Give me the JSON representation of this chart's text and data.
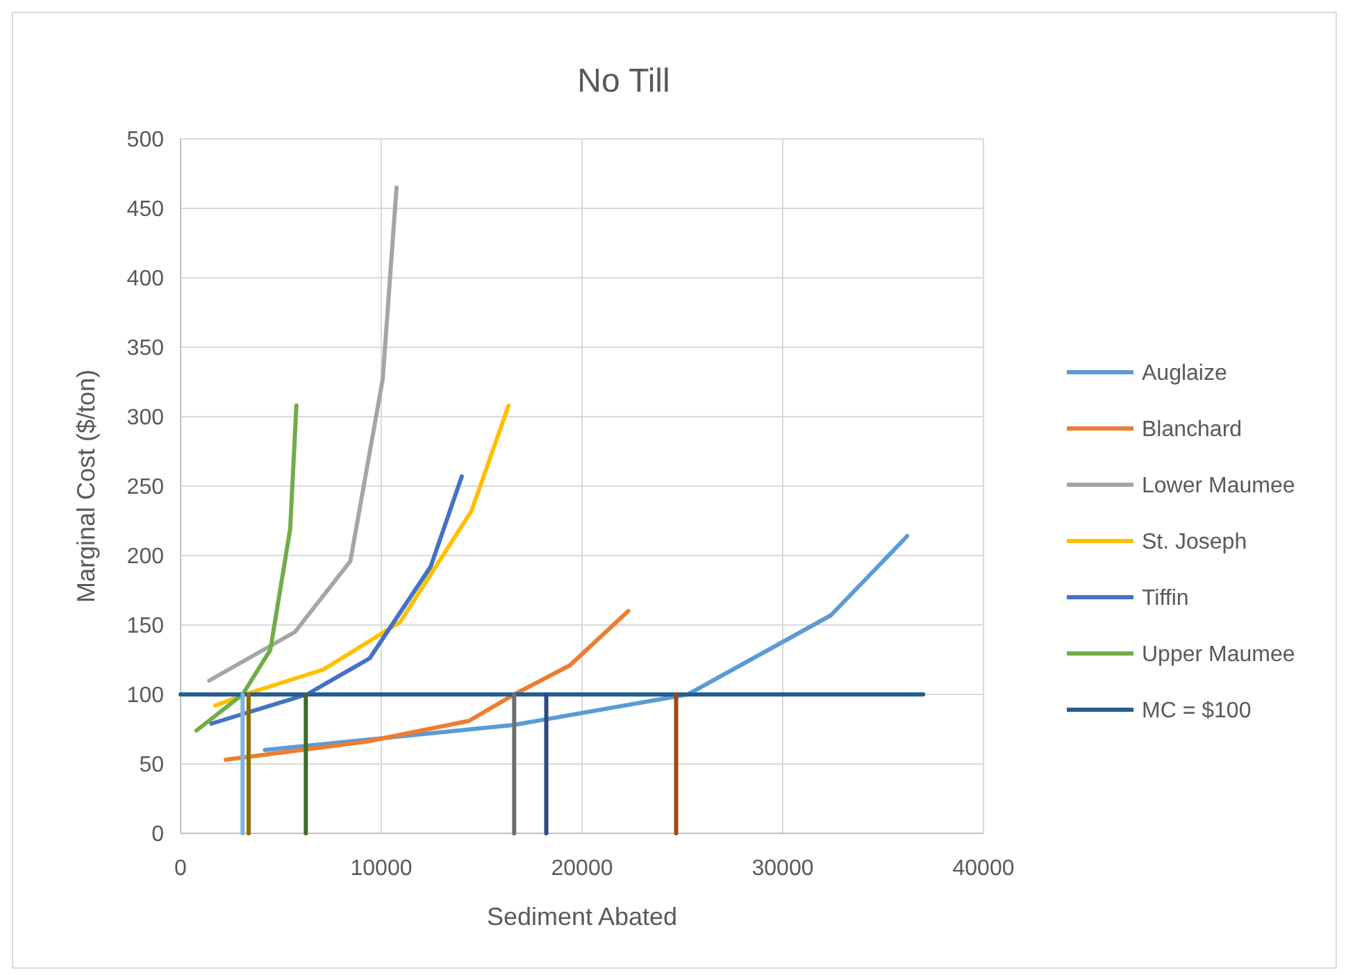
{
  "chart_data": {
    "type": "line",
    "title": "No Till",
    "xlabel": "Sediment Abated",
    "ylabel": "Marginal Cost ($/ton)",
    "xlim": [
      0,
      40000
    ],
    "xticks": [
      0,
      10000,
      20000,
      30000,
      40000
    ],
    "ylim": [
      0,
      500
    ],
    "yticks": [
      0,
      50,
      100,
      150,
      200,
      250,
      300,
      350,
      400,
      450,
      500
    ],
    "grid": true,
    "legend": "right",
    "marker": "none",
    "line_style": "solid",
    "series": [
      {
        "name": "Auglaize",
        "color": "#5b9bd5",
        "x": [
          4200,
          16570,
          25270,
          32400,
          36200
        ],
        "values": [
          60,
          78,
          100,
          157,
          214
        ]
      },
      {
        "name": "Blanchard",
        "color": "#ed7d31",
        "x": [
          2250,
          9260,
          14370,
          16620,
          19400,
          22300
        ],
        "values": [
          53,
          66,
          81,
          100,
          121,
          160
        ]
      },
      {
        "name": "Lower Maumee",
        "color": "#a5a5a5",
        "x": [
          1430,
          5700,
          8460,
          10070,
          10760
        ],
        "values": [
          110,
          145,
          196,
          327,
          465
        ]
      },
      {
        "name": "St. Joseph",
        "color": "#ffc000",
        "x": [
          1730,
          3200,
          7120,
          10930,
          14490,
          16340
        ],
        "values": [
          92,
          100,
          118,
          152,
          232,
          308
        ]
      },
      {
        "name": "Tiffin",
        "color": "#4472c4",
        "x": [
          1540,
          6290,
          9420,
          12460,
          14010
        ],
        "values": [
          79,
          100,
          126,
          192,
          257
        ]
      },
      {
        "name": "Upper Maumee",
        "color": "#70ad47",
        "x": [
          790,
          3090,
          4470,
          5460,
          5770
        ],
        "values": [
          74,
          100,
          132,
          219,
          308
        ]
      },
      {
        "name": "MC = $100",
        "color": "#255e91",
        "x": [
          0,
          37000
        ],
        "values": [
          100,
          100
        ]
      },
      {
        "color": "#7fb2e0",
        "x": [
          3090,
          3090
        ],
        "values": [
          0,
          100
        ]
      },
      {
        "color": "#8c6d00",
        "x": [
          3390,
          3390
        ],
        "values": [
          0,
          100
        ]
      },
      {
        "color": "#3f6a2a",
        "x": [
          6240,
          6240
        ],
        "values": [
          0,
          100
        ]
      },
      {
        "color": "#6e6e6e",
        "x": [
          16620,
          16620
        ],
        "values": [
          0,
          100
        ]
      },
      {
        "color": "#2e4a82",
        "x": [
          18220,
          18220
        ],
        "values": [
          0,
          100
        ]
      },
      {
        "color": "#a0480f",
        "x": [
          24690,
          24690
        ],
        "values": [
          0,
          100
        ]
      }
    ]
  }
}
